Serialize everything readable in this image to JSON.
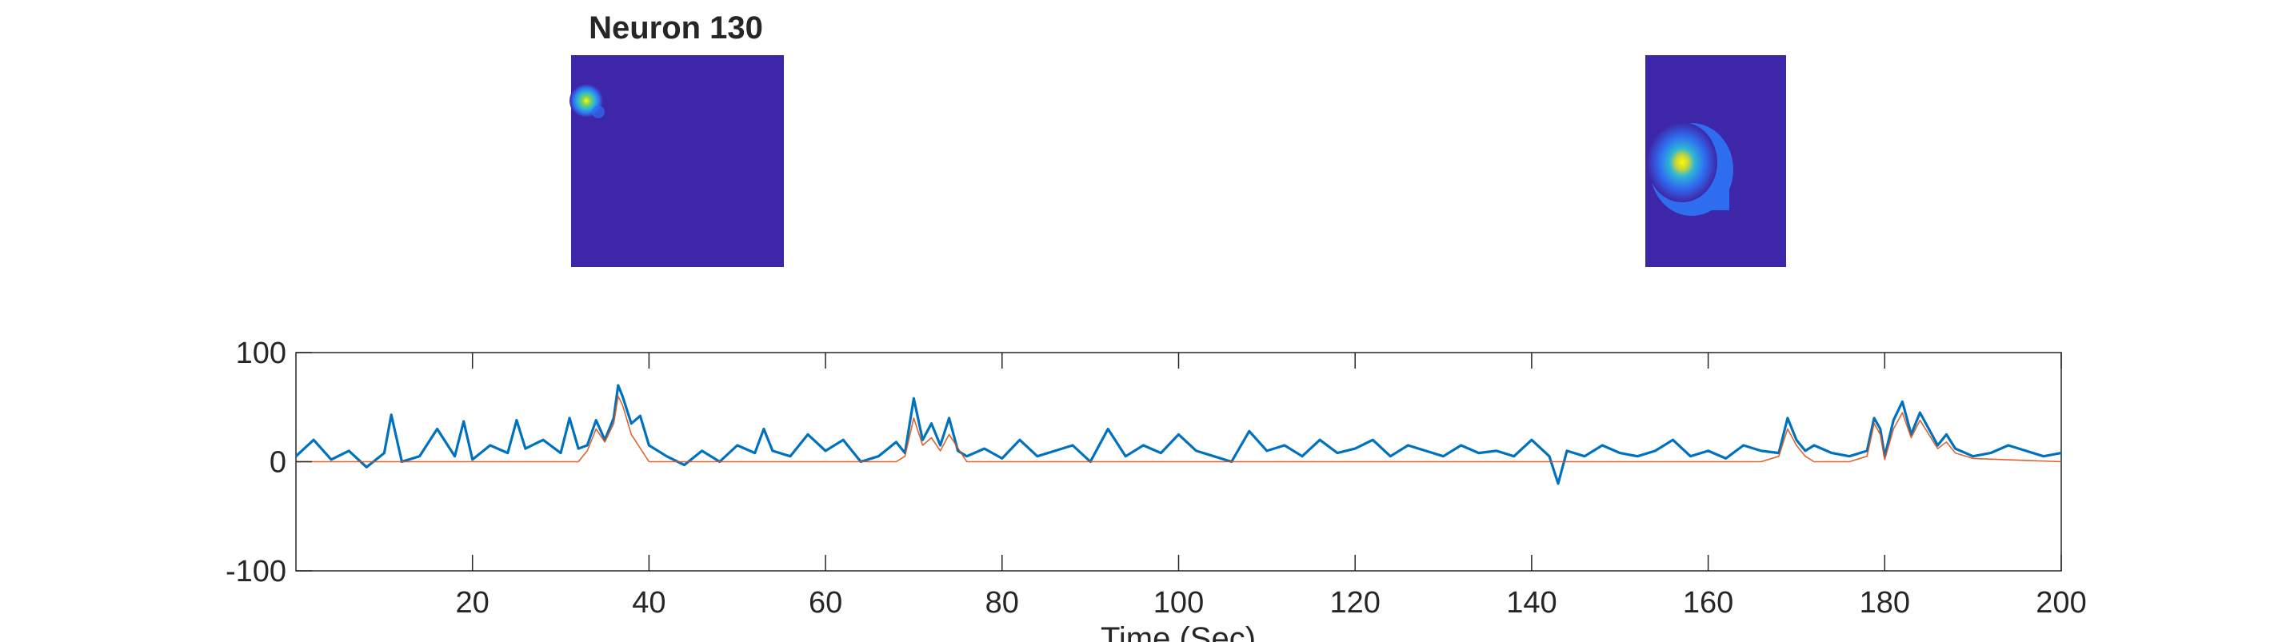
{
  "title": "Neuron 130",
  "xlabel": "Time (Sec)",
  "chart_data": [
    {
      "type": "heatmap",
      "panel": "spatial-footprint-zoomed-out",
      "peak_location_fraction": {
        "x": 0.07,
        "y": 0.21
      },
      "colormap": [
        "#3e26a8",
        "#2f6df0",
        "#2eb7d6",
        "#7fd158",
        "#f9fb0e"
      ]
    },
    {
      "type": "heatmap",
      "panel": "spatial-footprint-zoomed-in",
      "peak_location_fraction": {
        "x": 0.27,
        "y": 0.5
      },
      "colormap": [
        "#3e26a8",
        "#2f6df0",
        "#2eb7d6",
        "#7fd158",
        "#f9fb0e"
      ]
    },
    {
      "type": "line",
      "title": "",
      "xlabel": "Time (Sec)",
      "ylabel": "",
      "xlim": [
        0,
        200
      ],
      "ylim": [
        -100,
        100
      ],
      "xticks": [
        20,
        40,
        60,
        80,
        100,
        120,
        140,
        160,
        180,
        200
      ],
      "yticks": [
        -100,
        0,
        100
      ],
      "grid": false,
      "colors": {
        "raw": "#0072bd",
        "denoised": "#d95319"
      },
      "series": [
        {
          "role": "raw-trace",
          "color": "#0072bd",
          "x": [
            0,
            2,
            4,
            6,
            8,
            10,
            10.8,
            12,
            14,
            16,
            18,
            19,
            20,
            22,
            24,
            25,
            26,
            28,
            30,
            31,
            32,
            33,
            34,
            35,
            36,
            36.5,
            37,
            38,
            39,
            40,
            42,
            44,
            46,
            48,
            50,
            52,
            53,
            54,
            56,
            58,
            60,
            62,
            64,
            66,
            68,
            69,
            70,
            71,
            72,
            73,
            74,
            75,
            76,
            78,
            80,
            82,
            84,
            86,
            88,
            90,
            92,
            94,
            96,
            98,
            100,
            102,
            104,
            106,
            108,
            110,
            112,
            114,
            116,
            118,
            120,
            122,
            124,
            126,
            128,
            130,
            132,
            134,
            136,
            138,
            140,
            142,
            143,
            144,
            146,
            148,
            150,
            152,
            154,
            156,
            158,
            160,
            162,
            164,
            166,
            168,
            169,
            170,
            171,
            172,
            174,
            176,
            178,
            178.8,
            179.5,
            180,
            181,
            182,
            183,
            184,
            185,
            186,
            187,
            188,
            190,
            192,
            194,
            196,
            198,
            200
          ],
          "y": [
            5,
            20,
            2,
            10,
            -5,
            8,
            43,
            0,
            5,
            30,
            5,
            37,
            2,
            15,
            8,
            38,
            12,
            20,
            8,
            40,
            12,
            15,
            38,
            20,
            40,
            70,
            60,
            35,
            42,
            15,
            5,
            -3,
            10,
            0,
            15,
            8,
            30,
            10,
            5,
            25,
            10,
            20,
            0,
            5,
            18,
            8,
            58,
            20,
            35,
            15,
            40,
            10,
            5,
            12,
            3,
            20,
            5,
            10,
            15,
            0,
            30,
            5,
            15,
            8,
            25,
            10,
            5,
            0,
            28,
            10,
            15,
            5,
            20,
            8,
            12,
            20,
            5,
            15,
            10,
            5,
            15,
            8,
            10,
            5,
            20,
            5,
            -20,
            10,
            5,
            15,
            8,
            5,
            10,
            20,
            5,
            10,
            3,
            15,
            10,
            8,
            40,
            20,
            10,
            15,
            8,
            5,
            10,
            40,
            30,
            5,
            38,
            55,
            25,
            45,
            30,
            15,
            25,
            12,
            5,
            8,
            15,
            10,
            5,
            8
          ]
        },
        {
          "role": "denoised-trace",
          "color": "#d95319",
          "x": [
            0,
            32,
            33,
            34,
            35,
            36,
            36.5,
            37,
            38,
            40,
            68,
            69,
            70,
            71,
            72,
            73,
            74,
            76,
            166,
            168,
            169,
            170,
            171,
            172,
            176,
            178,
            178.8,
            179.5,
            180,
            181,
            182,
            183,
            184,
            185,
            186,
            187,
            188,
            190,
            200
          ],
          "y": [
            0,
            0,
            10,
            30,
            18,
            35,
            60,
            52,
            25,
            0,
            0,
            5,
            40,
            15,
            22,
            10,
            25,
            0,
            0,
            5,
            30,
            15,
            5,
            0,
            0,
            5,
            35,
            25,
            2,
            30,
            45,
            22,
            38,
            25,
            12,
            18,
            8,
            3,
            0
          ]
        }
      ]
    }
  ],
  "axes_frame_color": "#262626"
}
